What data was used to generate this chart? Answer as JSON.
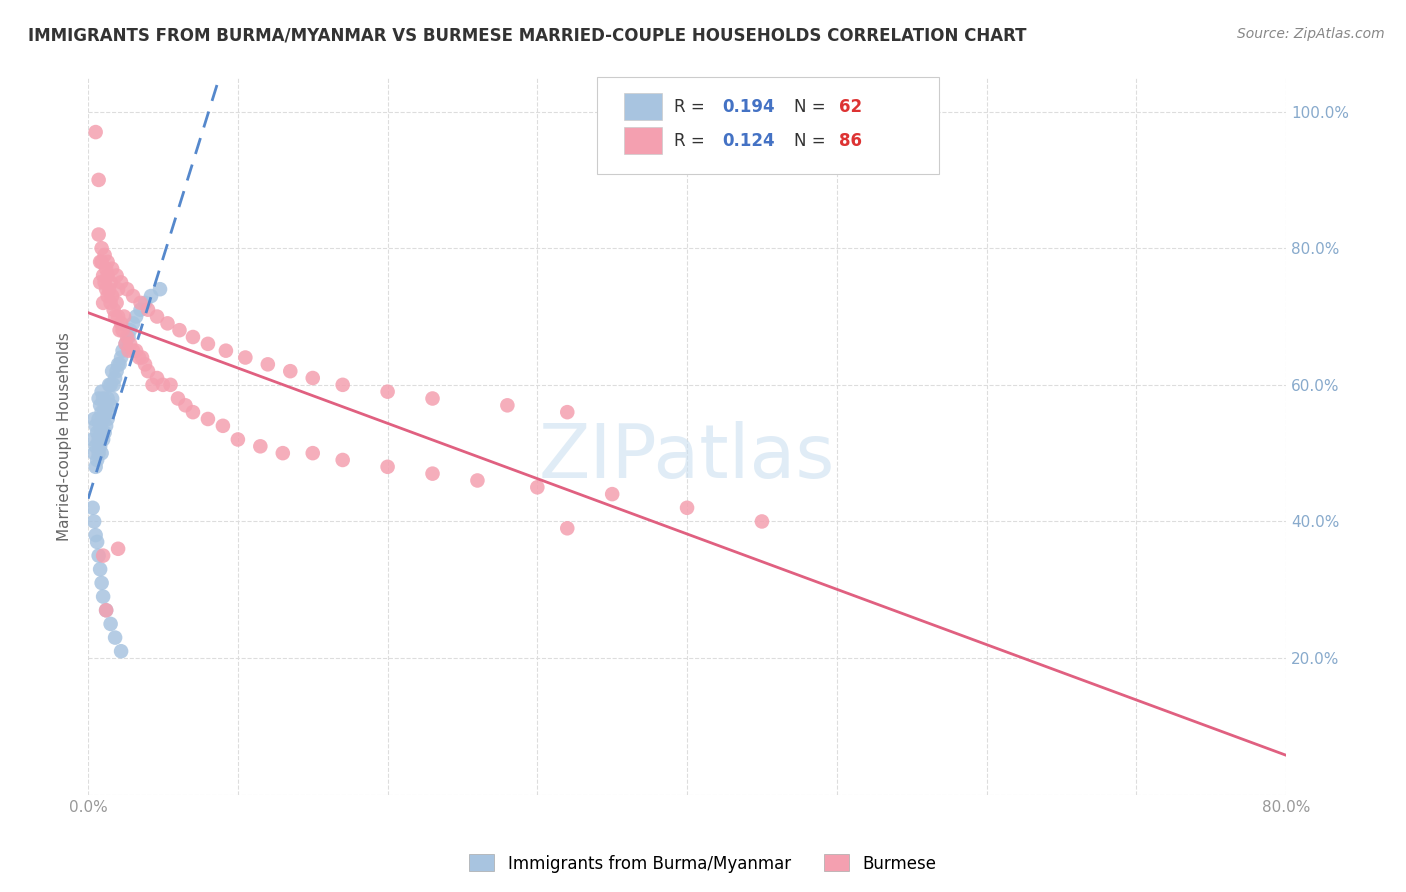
{
  "title": "IMMIGRANTS FROM BURMA/MYANMAR VS BURMESE MARRIED-COUPLE HOUSEHOLDS CORRELATION CHART",
  "source": "Source: ZipAtlas.com",
  "ylabel": "Married-couple Households",
  "xlim": [
    0.0,
    0.8
  ],
  "ylim": [
    0.0,
    1.05
  ],
  "blue_R": 0.194,
  "blue_N": 62,
  "pink_R": 0.124,
  "pink_N": 86,
  "blue_color": "#a8c4e0",
  "pink_color": "#f4a0b0",
  "blue_line_color": "#5588cc",
  "pink_line_color": "#e06080",
  "watermark_color": "#cce0f0",
  "legend_label_blue": "Immigrants from Burma/Myanmar",
  "legend_label_pink": "Burmese",
  "background_color": "#ffffff",
  "grid_color": "#dddddd",
  "right_ytick_color": "#88aacc",
  "title_color": "#333333",
  "source_color": "#888888",
  "ylabel_color": "#666666",
  "blue_x": [
    0.003,
    0.004,
    0.004,
    0.005,
    0.005,
    0.005,
    0.006,
    0.006,
    0.007,
    0.007,
    0.007,
    0.007,
    0.008,
    0.008,
    0.008,
    0.009,
    0.009,
    0.009,
    0.009,
    0.01,
    0.01,
    0.01,
    0.011,
    0.011,
    0.012,
    0.012,
    0.013,
    0.013,
    0.014,
    0.014,
    0.015,
    0.015,
    0.016,
    0.016,
    0.017,
    0.018,
    0.019,
    0.02,
    0.021,
    0.022,
    0.023,
    0.025,
    0.027,
    0.028,
    0.03,
    0.032,
    0.035,
    0.038,
    0.042,
    0.048,
    0.003,
    0.004,
    0.005,
    0.006,
    0.007,
    0.008,
    0.009,
    0.01,
    0.012,
    0.015,
    0.018,
    0.022
  ],
  "blue_y": [
    0.52,
    0.5,
    0.55,
    0.48,
    0.51,
    0.54,
    0.49,
    0.53,
    0.5,
    0.52,
    0.55,
    0.58,
    0.51,
    0.54,
    0.57,
    0.5,
    0.53,
    0.56,
    0.59,
    0.52,
    0.55,
    0.58,
    0.53,
    0.56,
    0.54,
    0.57,
    0.55,
    0.58,
    0.56,
    0.6,
    0.57,
    0.6,
    0.58,
    0.62,
    0.6,
    0.61,
    0.62,
    0.63,
    0.63,
    0.64,
    0.65,
    0.66,
    0.67,
    0.68,
    0.69,
    0.7,
    0.71,
    0.72,
    0.73,
    0.74,
    0.42,
    0.4,
    0.38,
    0.37,
    0.35,
    0.33,
    0.31,
    0.29,
    0.27,
    0.25,
    0.23,
    0.21
  ],
  "pink_x": [
    0.005,
    0.007,
    0.008,
    0.008,
    0.009,
    0.01,
    0.01,
    0.011,
    0.012,
    0.012,
    0.013,
    0.013,
    0.014,
    0.015,
    0.015,
    0.016,
    0.017,
    0.018,
    0.019,
    0.02,
    0.02,
    0.021,
    0.022,
    0.023,
    0.024,
    0.025,
    0.026,
    0.027,
    0.028,
    0.03,
    0.032,
    0.034,
    0.036,
    0.038,
    0.04,
    0.043,
    0.046,
    0.05,
    0.055,
    0.06,
    0.065,
    0.07,
    0.08,
    0.09,
    0.1,
    0.115,
    0.13,
    0.15,
    0.17,
    0.2,
    0.23,
    0.26,
    0.3,
    0.35,
    0.4,
    0.45,
    0.007,
    0.009,
    0.011,
    0.013,
    0.016,
    0.019,
    0.022,
    0.026,
    0.03,
    0.035,
    0.04,
    0.046,
    0.053,
    0.061,
    0.07,
    0.08,
    0.092,
    0.105,
    0.12,
    0.135,
    0.15,
    0.17,
    0.2,
    0.23,
    0.28,
    0.32,
    0.01,
    0.02,
    0.32,
    0.012
  ],
  "pink_y": [
    0.97,
    0.9,
    0.75,
    0.78,
    0.78,
    0.72,
    0.76,
    0.75,
    0.74,
    0.77,
    0.73,
    0.76,
    0.74,
    0.72,
    0.75,
    0.73,
    0.71,
    0.7,
    0.72,
    0.7,
    0.74,
    0.68,
    0.69,
    0.68,
    0.7,
    0.66,
    0.67,
    0.65,
    0.66,
    0.65,
    0.65,
    0.64,
    0.64,
    0.63,
    0.62,
    0.6,
    0.61,
    0.6,
    0.6,
    0.58,
    0.57,
    0.56,
    0.55,
    0.54,
    0.52,
    0.51,
    0.5,
    0.5,
    0.49,
    0.48,
    0.47,
    0.46,
    0.45,
    0.44,
    0.42,
    0.4,
    0.82,
    0.8,
    0.79,
    0.78,
    0.77,
    0.76,
    0.75,
    0.74,
    0.73,
    0.72,
    0.71,
    0.7,
    0.69,
    0.68,
    0.67,
    0.66,
    0.65,
    0.64,
    0.63,
    0.62,
    0.61,
    0.6,
    0.59,
    0.58,
    0.57,
    0.56,
    0.35,
    0.36,
    0.39,
    0.27
  ]
}
